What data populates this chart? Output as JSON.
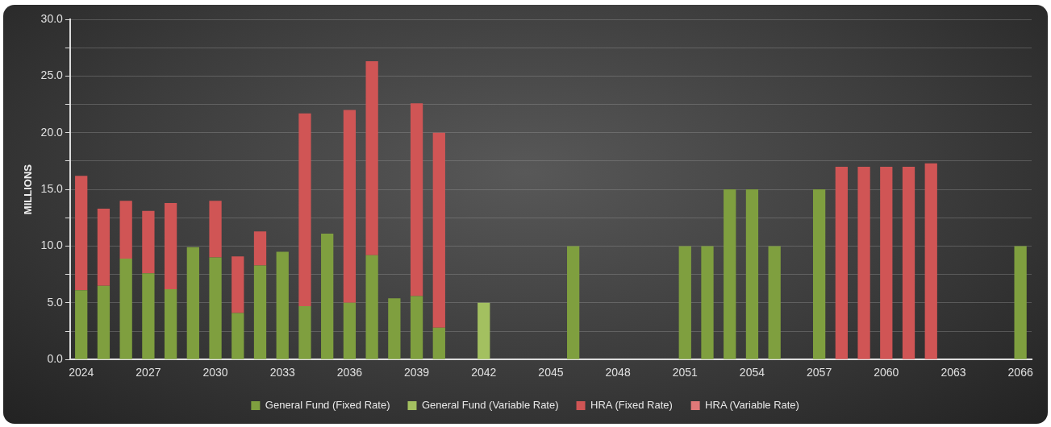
{
  "chart_data": {
    "type": "bar",
    "stacked": true,
    "ylabel": "MILLIONS",
    "categories": [
      "2024",
      null,
      null,
      "2027",
      null,
      null,
      "2030",
      null,
      null,
      "2033",
      null,
      null,
      "2036",
      null,
      null,
      "2039",
      null,
      null,
      "2042",
      null,
      null,
      "2045",
      null,
      null,
      "2048",
      null,
      null,
      "2051",
      null,
      null,
      "2054",
      null,
      null,
      "2057",
      null,
      null,
      "2060",
      null,
      null,
      "2063",
      null,
      null,
      "2066"
    ],
    "series": [
      {
        "name": "General Fund (Fixed Rate)",
        "color": "#7f9f3f",
        "values": [
          6.1,
          6.5,
          8.9,
          7.6,
          6.2,
          9.9,
          9.0,
          4.1,
          8.3,
          9.5,
          4.7,
          11.1,
          5.0,
          9.2,
          5.4,
          5.6,
          2.8,
          null,
          null,
          null,
          null,
          null,
          10.0,
          null,
          null,
          null,
          null,
          10.0,
          10.0,
          15.0,
          15.0,
          10.0,
          null,
          15.0,
          null,
          null,
          null,
          null,
          null,
          null,
          null,
          null,
          10.0
        ]
      },
      {
        "name": "General Fund (Variable Rate)",
        "color": "#a3c060",
        "values": [
          null,
          null,
          null,
          null,
          null,
          null,
          null,
          null,
          null,
          null,
          null,
          null,
          null,
          null,
          null,
          null,
          null,
          null,
          5.0,
          null,
          null,
          null,
          null,
          null,
          null,
          null,
          null,
          null,
          null,
          null,
          null,
          null,
          null,
          null,
          null,
          null,
          null,
          null,
          null,
          null,
          null,
          null,
          null
        ]
      },
      {
        "name": "HRA (Fixed Rate)",
        "color": "#d05555",
        "values": [
          10.1,
          6.8,
          5.1,
          5.5,
          7.6,
          null,
          5.0,
          5.0,
          3.0,
          null,
          17.0,
          null,
          17.0,
          17.1,
          null,
          17.0,
          17.2,
          null,
          null,
          null,
          null,
          null,
          null,
          null,
          null,
          null,
          null,
          null,
          null,
          null,
          null,
          null,
          null,
          null,
          17.0,
          17.0,
          17.0,
          17.0,
          17.3,
          null,
          null,
          null,
          null
        ]
      },
      {
        "name": "HRA (Variable Rate)",
        "color": "#e07878",
        "values": [
          null,
          null,
          null,
          null,
          null,
          null,
          null,
          null,
          null,
          null,
          null,
          null,
          null,
          null,
          null,
          null,
          null,
          null,
          null,
          null,
          null,
          null,
          null,
          null,
          null,
          null,
          null,
          null,
          null,
          null,
          null,
          null,
          null,
          null,
          null,
          null,
          null,
          null,
          null,
          null,
          null,
          null,
          null
        ]
      }
    ],
    "ylim": [
      0,
      30
    ],
    "yticks": [
      {
        "value": 0,
        "label": "0.0"
      },
      {
        "value": 2.5,
        "label": null
      },
      {
        "value": 5,
        "label": "5.0"
      },
      {
        "value": 7.5,
        "label": null
      },
      {
        "value": 10,
        "label": "10.0"
      },
      {
        "value": 12.5,
        "label": null
      },
      {
        "value": 15,
        "label": "15.0"
      },
      {
        "value": 17.5,
        "label": null
      },
      {
        "value": 20,
        "label": "20.0"
      },
      {
        "value": 22.5,
        "label": null
      },
      {
        "value": 25,
        "label": "25.0"
      },
      {
        "value": 27.5,
        "label": null
      },
      {
        "value": 30,
        "label": "30.0"
      }
    ],
    "grid": "y",
    "legend": "bottom"
  }
}
